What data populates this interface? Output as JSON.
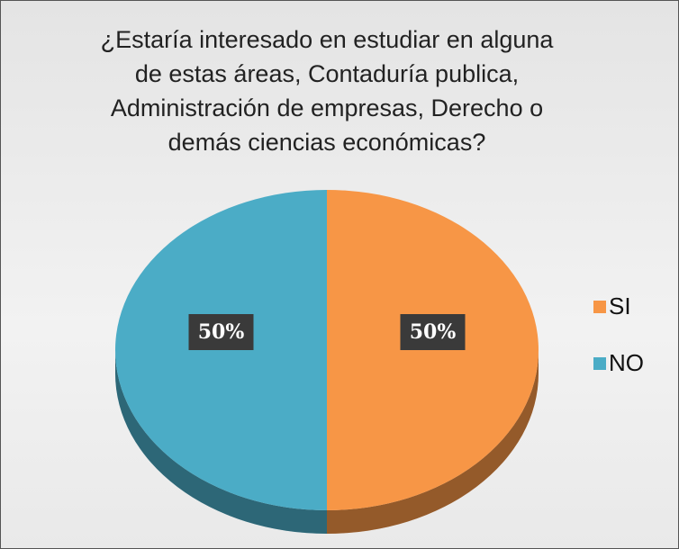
{
  "chart_data": {
    "type": "pie",
    "title": "¿Estaría interesado en estudiar en alguna de estas áreas, Contaduría publica, Administración de empresas, Derecho o demás ciencias económicas?",
    "categories": [
      "SI",
      "NO"
    ],
    "values": [
      50,
      50
    ],
    "value_labels": [
      "50%",
      "50%"
    ],
    "colors": [
      "#f79646",
      "#4bacc6"
    ],
    "legend": "right"
  }
}
